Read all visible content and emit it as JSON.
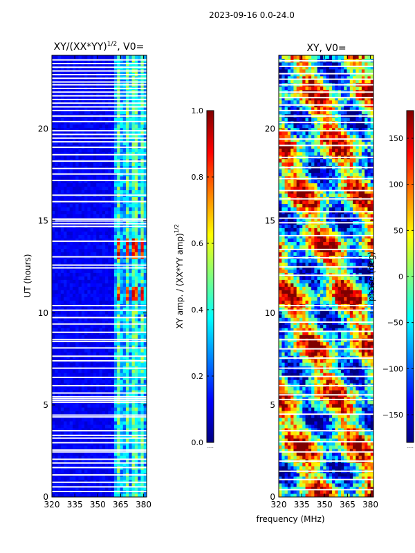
{
  "figure": {
    "suptitle": "2023-09-16 0.0-24.0",
    "common_xlabel": "frequency (MHz)"
  },
  "colors": {
    "jet": [
      "#00007f",
      "#0000ff",
      "#007fff",
      "#00ffff",
      "#7fff7f",
      "#ffff00",
      "#ff7f00",
      "#ff0000",
      "#7f0000"
    ],
    "gap": "#ffffff",
    "frame": "#000000"
  },
  "chart_data": [
    {
      "type": "heatmap",
      "title_main": "XY/(XX*YY)",
      "title_sup": "1/2",
      "title_tail": ", V0=",
      "xlabel": "",
      "ylabel": "UT (hours)",
      "xlim": [
        320,
        382
      ],
      "ylim": [
        0,
        24
      ],
      "xticks": [
        320,
        335,
        350,
        365,
        380
      ],
      "yticks": [
        0,
        5,
        10,
        15,
        20
      ],
      "gap_hours": [
        0.3,
        0.55,
        0.8,
        1.2,
        1.6,
        1.85,
        2.05,
        2.45,
        2.55,
        2.95,
        3.2,
        3.35,
        3.6,
        4.35,
        4.45,
        5.15,
        5.25,
        5.35,
        5.45,
        5.65,
        6.05,
        6.5,
        7.0,
        7.4,
        7.65,
        8.1,
        8.45,
        8.55,
        8.95,
        9.4,
        9.75,
        10.15,
        10.4,
        12.45,
        12.6,
        13.05,
        13.9,
        14.7,
        14.85,
        15.0,
        15.1,
        16.05,
        16.4,
        17.2,
        17.55,
        17.85,
        18.25,
        18.6,
        19.0,
        19.3,
        19.5,
        19.7,
        19.9,
        20.4,
        20.7,
        21.0,
        21.2,
        21.4,
        21.6,
        21.8,
        22.0,
        22.2,
        22.4,
        22.55,
        22.75,
        22.95,
        23.15,
        23.35,
        23.55,
        23.75
      ],
      "bright_bands_mhz": [
        [
          362,
          365
        ],
        [
          368,
          371
        ],
        [
          373,
          376
        ],
        [
          378,
          381
        ]
      ],
      "flare_hours": [
        [
          10.6,
          11.4
        ],
        [
          12.9,
          14.0
        ]
      ],
      "colorbar": {
        "label_main": "XY amp. / (XX*YY amp)",
        "label_sup": "1/2",
        "ticks": [
          0.0,
          0.2,
          0.4,
          0.6,
          0.8,
          1.0
        ],
        "tick_labels": [
          "0.0",
          "0.2",
          "0.4",
          "0.6",
          "0.8",
          "1.0"
        ],
        "range": [
          0,
          1
        ],
        "bottom_note": "....."
      }
    },
    {
      "type": "heatmap",
      "title": "XY, V0=",
      "xlabel": "frequency (MHz)",
      "ylabel": "",
      "xlim": [
        320,
        382
      ],
      "ylim": [
        0,
        24
      ],
      "xticks": [
        320,
        335,
        350,
        365,
        380
      ],
      "yticks": [
        0,
        5,
        10,
        15,
        20
      ],
      "gap_hours": [
        0.4,
        0.95,
        1.4,
        1.95,
        2.45,
        3.0,
        3.6,
        4.5,
        5.3,
        5.55,
        6.05,
        6.55,
        7.0,
        7.55,
        8.05,
        8.55,
        9.0,
        9.5,
        10.15,
        10.4,
        12.05,
        12.5,
        13.0,
        13.45,
        14.2,
        14.9,
        15.15,
        15.5,
        16.2,
        16.65,
        17.3,
        17.9,
        18.45,
        19.1,
        19.45,
        19.9,
        20.35,
        20.7,
        21.0,
        21.3,
        21.7,
        22.0,
        22.4,
        22.7,
        23.0,
        23.4,
        23.7
      ],
      "colorbar": {
        "label": "phase (deg)",
        "ticks": [
          -150,
          -100,
          -50,
          0,
          50,
          100,
          150
        ],
        "tick_labels": [
          "−150",
          "−100",
          "−50",
          "0",
          "50",
          "100",
          "150"
        ],
        "range": [
          -180,
          180
        ],
        "bottom_note": "....."
      }
    }
  ]
}
